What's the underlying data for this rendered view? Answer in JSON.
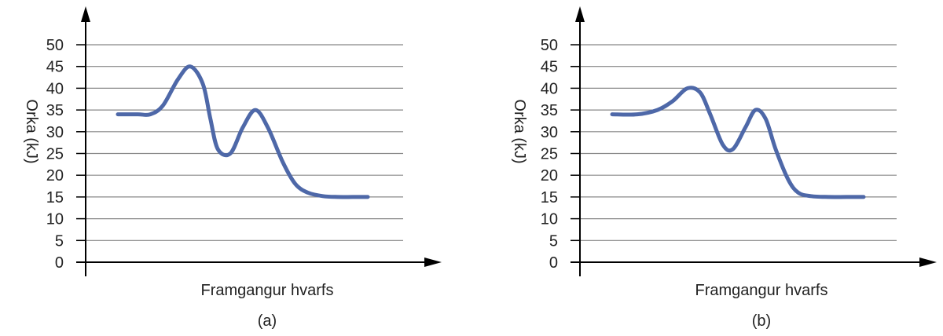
{
  "colors": {
    "curve": "#4e68a8",
    "axis": "#000000",
    "grid": "#888888"
  },
  "chart_data": [
    {
      "type": "line",
      "panel_label": "(a)",
      "xlabel": "Framgangur hvarfs",
      "ylabel": "Orka (kJ)",
      "ylim": [
        0,
        50
      ],
      "yticks": [
        "0",
        "5",
        "10",
        "15",
        "20",
        "25",
        "30",
        "35",
        "40",
        "45",
        "50"
      ],
      "grid": true,
      "series": [
        {
          "x": [
            0.0,
            0.08,
            0.13,
            0.18,
            0.24,
            0.29,
            0.34,
            0.37,
            0.4,
            0.45,
            0.5,
            0.55,
            0.6,
            0.66,
            0.71,
            0.76,
            0.82,
            0.88,
            0.94,
            1.0
          ],
          "values": [
            34,
            34,
            34,
            36,
            42,
            45,
            41,
            33,
            26,
            25,
            31,
            35,
            31,
            23,
            18,
            16,
            15.2,
            15,
            15,
            15
          ]
        }
      ]
    },
    {
      "type": "line",
      "panel_label": "(b)",
      "xlabel": "Framgangur hvarfs",
      "ylabel": "Orka (kJ)",
      "ylim": [
        0,
        50
      ],
      "yticks": [
        "0",
        "5",
        "10",
        "15",
        "20",
        "25",
        "30",
        "35",
        "40",
        "45",
        "50"
      ],
      "grid": true,
      "series": [
        {
          "x": [
            0.0,
            0.1,
            0.18,
            0.24,
            0.3,
            0.35,
            0.39,
            0.44,
            0.48,
            0.53,
            0.57,
            0.61,
            0.65,
            0.7,
            0.74,
            0.79,
            0.86,
            0.93,
            1.0
          ],
          "values": [
            34,
            34,
            35,
            37,
            40,
            39,
            34,
            27,
            26,
            31,
            35,
            33,
            26,
            19,
            16,
            15.2,
            15,
            15,
            15
          ]
        }
      ]
    }
  ]
}
